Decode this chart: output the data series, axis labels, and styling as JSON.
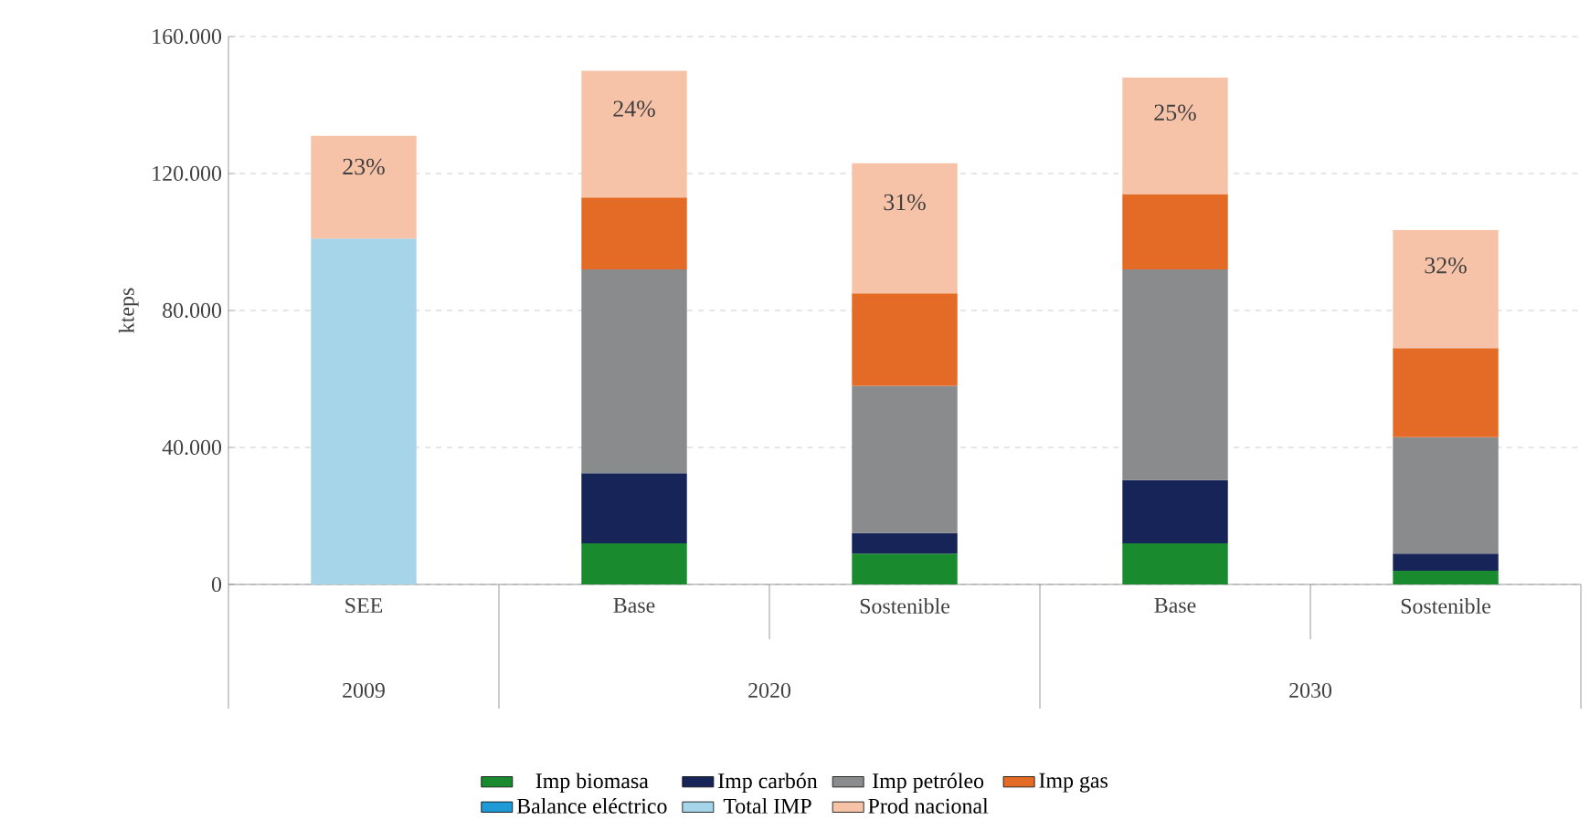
{
  "chart_data": {
    "type": "bar",
    "stacked": true,
    "ylabel": "kteps",
    "categories": [
      "SEE",
      "Base",
      "Sostenible",
      "Base",
      "Sostenible"
    ],
    "annotations": [
      "2009",
      "2020",
      "2030",
      "23%",
      "24%",
      "31%",
      "25%",
      "32%"
    ],
    "ylim": [
      0,
      160000
    ],
    "yticks": [
      {
        "value": 0,
        "label": "0"
      },
      {
        "value": 40000,
        "label": "40.000"
      },
      {
        "value": 80000,
        "label": "80.000"
      },
      {
        "value": 120000,
        "label": "120.000"
      },
      {
        "value": 160000,
        "label": "160.000"
      }
    ],
    "grid": "y",
    "legend": "bottom",
    "series": [
      {
        "name": "Imp biomasa",
        "color": "#1a8a2e",
        "values": [
          null,
          12000,
          9000,
          12000,
          4000
        ]
      },
      {
        "name": "Imp carbón",
        "color": "#172457",
        "values": [
          null,
          20500,
          6000,
          18500,
          5000
        ]
      },
      {
        "name": "Imp petróleo",
        "color": "#8a8b8d",
        "values": [
          null,
          59500,
          43000,
          61500,
          34000
        ]
      },
      {
        "name": "Imp gas",
        "color": "#e36b25",
        "values": [
          null,
          21000,
          27000,
          22000,
          26000
        ]
      },
      {
        "name": "Balance eléctrico",
        "color": "#1e9ad6",
        "values": [
          null,
          null,
          null,
          null,
          null
        ]
      },
      {
        "name": "Total IMP",
        "color": "#a6d4e8",
        "values": [
          101000,
          null,
          null,
          null,
          null
        ]
      },
      {
        "name": "Prod nacional",
        "color": "#f7c3a8",
        "values": [
          30000,
          37000,
          38000,
          34000,
          34500
        ]
      }
    ]
  }
}
